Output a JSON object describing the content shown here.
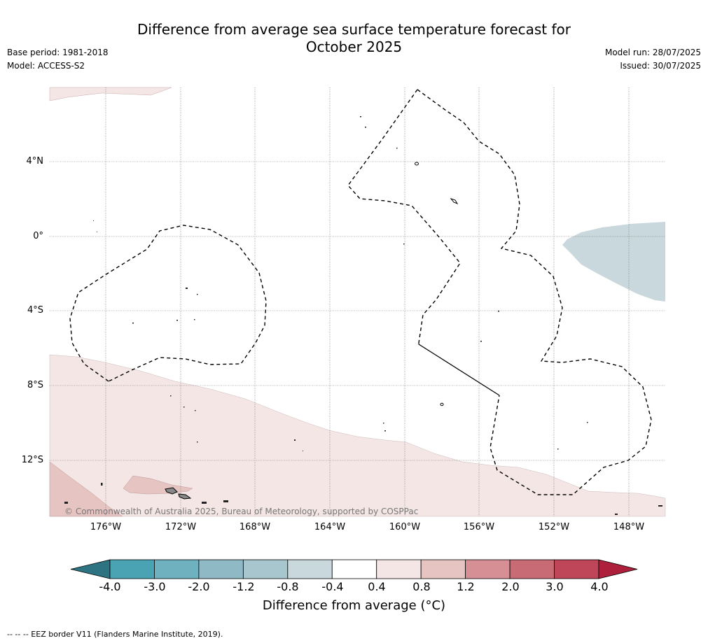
{
  "header": {
    "title_line1": "Difference from average sea surface temperature forecast for",
    "title_line2": "October 2025",
    "base_period": "Base period: 1981-2018",
    "model": "Model: ACCESS-S2",
    "model_run": "Model run: 28/07/2025",
    "issued": "Issued: 30/07/2025"
  },
  "map": {
    "lat_labels": [
      "4°N",
      "0°",
      "4°S",
      "8°S",
      "12°S"
    ],
    "lon_labels": [
      "176°W",
      "172°W",
      "168°W",
      "164°W",
      "160°W",
      "156°W",
      "152°W",
      "148°W"
    ],
    "copyright": "© Commonwealth of Australia 2025, Bureau of Meteorology, supported by COSPPac",
    "fill_colors": {
      "warm_light": "#f5e6e6",
      "warm_medium": "#e6c4c2",
      "cool_light": "#c9d8dd",
      "land": "#888888"
    }
  },
  "colorbar": {
    "ticks": [
      "-4.0",
      "-3.0",
      "-2.0",
      "-1.2",
      "-0.8",
      "-0.4",
      "0.4",
      "0.8",
      "1.2",
      "2.0",
      "3.0",
      "4.0"
    ],
    "colors": [
      "#2e7382",
      "#4aa3b3",
      "#6fb1be",
      "#8fbac5",
      "#a8c6cd",
      "#c9d8dd",
      "#ffffff",
      "#f5e6e6",
      "#e6c4c2",
      "#d68f94",
      "#c96b74",
      "#bf4658",
      "#ad1f3a"
    ],
    "label": "Difference from average (°C)"
  },
  "footnote": "--  --  -- EEZ border V11 (Flanders Marine Institute, 2019)."
}
